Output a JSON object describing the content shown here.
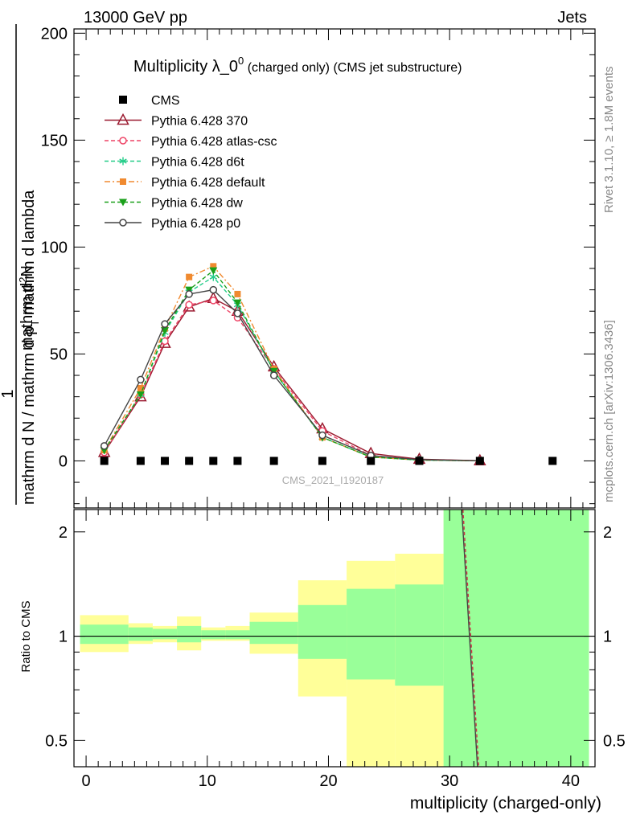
{
  "header": {
    "left": "13000 GeV pp",
    "right": "Jets"
  },
  "side_labels": {
    "rivet": "Rivet 3.1.10, ≥ 1.8M events",
    "site": "mcplots.cern.ch [arXiv:1306.3436]"
  },
  "title": {
    "main": "Multiplicity λ_0",
    "sup": "0",
    "sub": " (charged only) (CMS jet substructure)"
  },
  "watermark": "CMS_2021_I1920187",
  "ylabel_num": "1",
  "ylabel_num2": "mathrm d",
  "ylabel_den": "mathrm d N / mathrm d p",
  "ylabel_den2": "mathrm d",
  "ylabel_main": "mathrm d p",
  "xlabel": "multiplicity (charged-only)",
  "ratio_ylabel": "Ratio to CMS",
  "colors": {
    "band_green": "#99ff99",
    "band_yellow": "#ffff99"
  },
  "chart_data": {
    "type": "line",
    "xlim": [
      -1,
      42
    ],
    "main_ylim": [
      -22,
      202
    ],
    "ratio_ylim": [
      0.42,
      2.32
    ],
    "main_yticks": [
      0,
      50,
      100,
      150,
      200
    ],
    "ratio_yticks": [
      0.5,
      1,
      2
    ],
    "xticks": [
      0,
      10,
      20,
      30,
      40
    ],
    "cms": {
      "name": "CMS",
      "x": [
        1.5,
        4.5,
        6.5,
        8.5,
        10.5,
        12.5,
        15.5,
        19.5,
        23.5,
        27.5,
        32.5,
        38.5
      ],
      "y": [
        0,
        0,
        0,
        0,
        0,
        0,
        0,
        0,
        0,
        0,
        0,
        0
      ]
    },
    "series": [
      {
        "name": "Pythia 6.428 370",
        "color": "#9b1b30",
        "dash": "",
        "marker": "triangle-open",
        "x": [
          1.5,
          4.5,
          6.5,
          8.5,
          10.5,
          12.5,
          15.5,
          19.5,
          23.5,
          27.5,
          32.5
        ],
        "y": [
          4,
          30,
          55,
          72,
          76,
          70,
          44,
          15,
          3.5,
          0.8,
          0.1
        ]
      },
      {
        "name": "Pythia 6.428 atlas-csc",
        "color": "#ee4466",
        "dash": "5,3",
        "marker": "circle-open",
        "x": [
          1.5,
          4.5,
          6.5,
          8.5,
          10.5,
          12.5,
          15.5,
          19.5,
          23.5,
          27.5,
          32.5
        ],
        "y": [
          4,
          31,
          56,
          73,
          75,
          67,
          43,
          14,
          2.5,
          0.6,
          0.05
        ]
      },
      {
        "name": "Pythia 6.428 d6t",
        "color": "#22cc88",
        "dash": "5,3",
        "marker": "star",
        "x": [
          1.5,
          4.5,
          6.5,
          8.5,
          10.5,
          12.5,
          15.5,
          19.5,
          23.5,
          27.5,
          32.5
        ],
        "y": [
          5,
          31,
          60,
          79,
          86,
          73,
          42,
          11,
          1.8,
          0.4,
          0.03
        ]
      },
      {
        "name": "Pythia 6.428 default",
        "color": "#f08a30",
        "dash": "7,3,2,3",
        "marker": "square",
        "x": [
          1.5,
          4.5,
          6.5,
          8.5,
          10.5,
          12.5,
          15.5,
          19.5,
          23.5,
          27.5,
          32.5
        ],
        "y": [
          5,
          34,
          62,
          86,
          91,
          78,
          43,
          11,
          1.8,
          0.4,
          0.03
        ]
      },
      {
        "name": "Pythia 6.428 dw",
        "color": "#1aa01a",
        "dash": "5,3",
        "marker": "triangle-down",
        "x": [
          1.5,
          4.5,
          6.5,
          8.5,
          10.5,
          12.5,
          15.5,
          19.5,
          23.5,
          27.5,
          32.5
        ],
        "y": [
          5,
          31,
          61,
          80,
          89,
          74,
          42,
          11,
          1.8,
          0.4,
          0.03
        ]
      },
      {
        "name": "Pythia 6.428 p0",
        "color": "#444444",
        "dash": "",
        "marker": "circle-open",
        "x": [
          1.5,
          4.5,
          6.5,
          8.5,
          10.5,
          12.5,
          15.5,
          19.5,
          23.5,
          27.5,
          32.5
        ],
        "y": [
          7,
          38,
          64,
          78,
          80,
          69,
          40,
          12,
          2.5,
          0.6,
          0.05
        ]
      }
    ],
    "ratio_bands": [
      {
        "x0": -0.5,
        "x1": 3.5,
        "y0": 0.9,
        "y1": 1.15,
        "inner0": 0.95,
        "inner1": 1.08
      },
      {
        "x0": 3.5,
        "x1": 5.5,
        "y0": 0.95,
        "y1": 1.09,
        "inner0": 0.97,
        "inner1": 1.06
      },
      {
        "x0": 5.5,
        "x1": 7.5,
        "y0": 0.96,
        "y1": 1.07,
        "inner0": 0.98,
        "inner1": 1.05
      },
      {
        "x0": 7.5,
        "x1": 9.5,
        "y0": 0.91,
        "y1": 1.14,
        "inner0": 0.96,
        "inner1": 1.07
      },
      {
        "x0": 9.5,
        "x1": 11.5,
        "y0": 0.97,
        "y1": 1.06,
        "inner0": 0.98,
        "inner1": 1.04
      },
      {
        "x0": 11.5,
        "x1": 13.5,
        "y0": 0.97,
        "y1": 1.07,
        "inner0": 0.98,
        "inner1": 1.04
      },
      {
        "x0": 13.5,
        "x1": 17.5,
        "y0": 0.89,
        "y1": 1.17,
        "inner0": 0.95,
        "inner1": 1.1
      },
      {
        "x0": 17.5,
        "x1": 21.5,
        "y0": 0.67,
        "y1": 1.45,
        "inner0": 0.86,
        "inner1": 1.23
      },
      {
        "x0": 21.5,
        "x1": 25.5,
        "y0": 0.38,
        "y1": 1.65,
        "inner0": 0.75,
        "inner1": 1.37
      },
      {
        "x0": 25.5,
        "x1": 29.5,
        "y0": 0.34,
        "y1": 1.73,
        "inner0": 0.72,
        "inner1": 1.41
      },
      {
        "x0": 29.5,
        "x1": 41.5,
        "y0": 0.3,
        "y1": 2.4,
        "inner0": 0.3,
        "inner1": 2.4
      }
    ],
    "ratio_lines": [
      {
        "color": "#444444",
        "x": [
          31.0,
          32.3
        ],
        "y": [
          2.32,
          0.42
        ]
      },
      {
        "color": "#cc3344",
        "dash": "4,3",
        "x": [
          31.1,
          32.4
        ],
        "y": [
          2.32,
          0.42
        ]
      }
    ]
  }
}
